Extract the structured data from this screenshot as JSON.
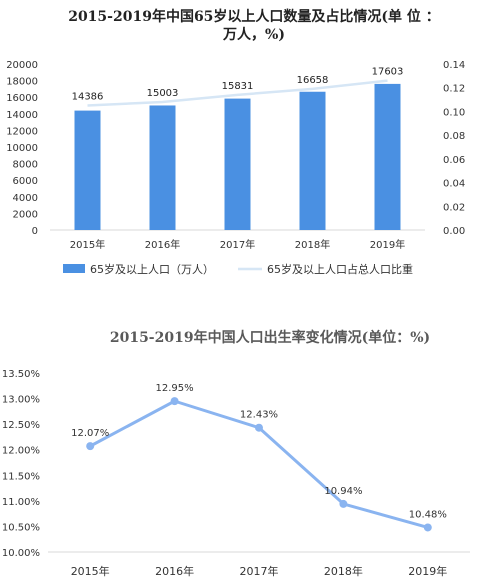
{
  "chart_data": [
    {
      "type": "bar",
      "title_line1": "2015-2019年中国65岁以上人口数量及占比情况(单 位 ：",
      "title_line2": "万人，%)",
      "categories": [
        "2015年",
        "2016年",
        "2017年",
        "2018年",
        "2019年"
      ],
      "series": [
        {
          "name": "65岁及以上人口（万人）",
          "values": [
            14386,
            15003,
            15831,
            16658,
            17603
          ],
          "axis": "left",
          "color": "#4a90e2"
        },
        {
          "name": "65岁及以上人口占总人口比重",
          "values": [
            0.105,
            0.108,
            0.114,
            0.119,
            0.126
          ],
          "axis": "right",
          "type": "line",
          "color": "#d6e6f5"
        }
      ],
      "ylim_left": [
        0,
        20000
      ],
      "yticks_left": [
        "0",
        "2000",
        "4000",
        "6000",
        "8000",
        "10000",
        "12000",
        "14000",
        "16000",
        "18000",
        "20000"
      ],
      "ylim_right": [
        0,
        0.14
      ],
      "yticks_right": [
        "0.00",
        "0.02",
        "0.04",
        "0.06",
        "0.08",
        "0.10",
        "0.12",
        "0.14"
      ],
      "data_labels": [
        "14386",
        "15003",
        "15831",
        "16658",
        "17603"
      ],
      "grid": false,
      "legend_position": "bottom"
    },
    {
      "type": "line",
      "title": "2015-2019年中国人口出生率变化情况(单位：%)",
      "categories": [
        "2015年",
        "2016年",
        "2017年",
        "2018年",
        "2019年"
      ],
      "series": [
        {
          "values": [
            12.07,
            12.95,
            12.43,
            10.94,
            10.48
          ],
          "color": "#8ab4f0"
        }
      ],
      "data_labels": [
        "12.07%",
        "12.95%",
        "12.43%",
        "10.94%",
        "10.48%"
      ],
      "ylim": [
        10.0,
        13.5
      ],
      "yticks": [
        "10.00%",
        "10.50%",
        "11.00%",
        "11.50%",
        "12.00%",
        "12.50%",
        "13.00%",
        "13.50%"
      ],
      "grid": false,
      "legend_position": "none"
    }
  ]
}
